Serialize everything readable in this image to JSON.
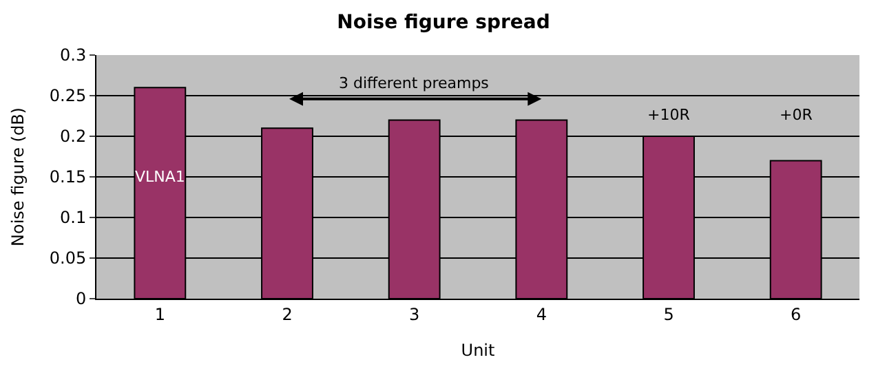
{
  "chart_data": {
    "type": "bar",
    "title": "Noise figure spread",
    "xlabel": "Unit",
    "ylabel": "Noise figure (dB)",
    "categories": [
      "1",
      "2",
      "3",
      "4",
      "5",
      "6"
    ],
    "values": [
      0.26,
      0.21,
      0.22,
      0.22,
      0.2,
      0.17
    ],
    "color": "#993366",
    "ylim": [
      0,
      0.3
    ],
    "yticks": [
      {
        "value": 0,
        "label": "0"
      },
      {
        "value": 0.05,
        "label": "0.05"
      },
      {
        "value": 0.1,
        "label": "0.1"
      },
      {
        "value": 0.15,
        "label": "0.15"
      },
      {
        "value": 0.2,
        "label": "0.2"
      },
      {
        "value": 0.25,
        "label": "0.25"
      },
      {
        "value": 0.3,
        "label": "0.3"
      }
    ],
    "grid": "y",
    "annotations": [
      "VLNA1",
      "3 different preamps",
      "+10R",
      "+0R"
    ]
  }
}
